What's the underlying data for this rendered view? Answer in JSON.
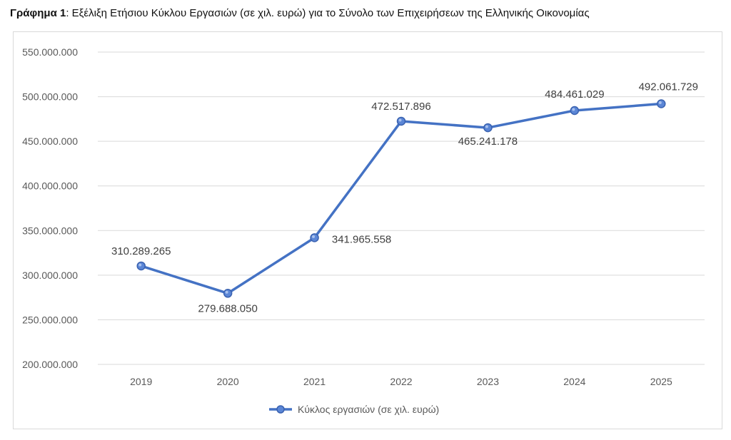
{
  "header": {
    "title_bold": "Γράφημα 1",
    "title_rest": ": Εξέλιξη Ετήσιου Κύκλου Εργασιών (σε χιλ. ευρώ) για το Σύνολο των Επιχειρήσεων της Ελληνικής Οικονομίας"
  },
  "chart_data": {
    "type": "line",
    "title": "Γράφημα 1: Εξέλιξη Ετήσιου Κύκλου Εργασιών (σε χιλ. ευρώ) για το Σύνολο των Επιχειρήσεων της Ελληνικής Οικονομίας",
    "categories": [
      "2019",
      "2020",
      "2021",
      "2022",
      "2023",
      "2024",
      "2025"
    ],
    "series": [
      {
        "name": "Κύκλος εργασιών (σε χιλ. ευρώ)",
        "values": [
          310289265,
          279688050,
          341965558,
          472517896,
          465241178,
          484461029,
          492061729
        ],
        "labels": [
          "310.289.265",
          "279.688.050",
          "341.965.558",
          "472.517.896",
          "465.241.178",
          "484.461.029",
          "492.061.729"
        ],
        "color": "#4472C4"
      }
    ],
    "ylim": [
      200000000,
      550000000
    ],
    "y_ticks": [
      200000000,
      250000000,
      300000000,
      350000000,
      400000000,
      450000000,
      500000000,
      550000000
    ],
    "y_tick_labels": [
      "200.000.000",
      "250.000.000",
      "300.000.000",
      "350.000.000",
      "400.000.000",
      "450.000.000",
      "500.000.000",
      "550.000.000"
    ],
    "grid": true,
    "legend": "bottom",
    "xlabel": "",
    "ylabel": ""
  }
}
